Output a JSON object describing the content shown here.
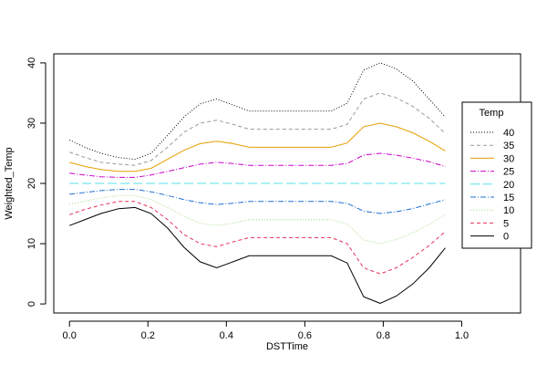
{
  "chart_data": {
    "type": "line",
    "title": "",
    "xlabel": "DSTTime",
    "ylabel": "Weighted_Temp",
    "xlim": [
      -0.04,
      1.15
    ],
    "ylim": [
      -1.5,
      41.5
    ],
    "x_ticks": [
      0.0,
      0.2,
      0.4,
      0.6,
      0.8,
      1.0
    ],
    "x_tick_labels": [
      "0.0",
      "0.2",
      "0.4",
      "0.6",
      "0.8",
      "1.0"
    ],
    "y_ticks": [
      0,
      10,
      20,
      30,
      40
    ],
    "y_tick_labels": [
      "0",
      "10",
      "20",
      "30",
      "40"
    ],
    "grid": false,
    "legend": {
      "title": "Temp",
      "position": "right"
    },
    "x": [
      0.0,
      0.04,
      0.08,
      0.125,
      0.167,
      0.208,
      0.25,
      0.292,
      0.333,
      0.375,
      0.417,
      0.458,
      0.5,
      0.542,
      0.583,
      0.625,
      0.667,
      0.708,
      0.75,
      0.792,
      0.833,
      0.875,
      0.917,
      0.958
    ],
    "series": [
      {
        "name": "40",
        "color": "#000000",
        "dash": "1,2",
        "values": [
          27.2,
          26.0,
          25.0,
          24.3,
          24.0,
          25.0,
          28.0,
          31.0,
          33.2,
          34.0,
          33.0,
          32.0,
          32.0,
          32.0,
          32.0,
          32.0,
          32.0,
          33.3,
          38.8,
          40.0,
          39.0,
          37.0,
          34.0,
          31.0
        ]
      },
      {
        "name": "35",
        "color": "#999999",
        "dash": "4,3",
        "values": [
          25.2,
          24.3,
          23.5,
          23.2,
          23.0,
          23.8,
          26.0,
          28.5,
          30.0,
          30.5,
          29.8,
          29.0,
          29.0,
          29.0,
          29.0,
          29.0,
          29.0,
          29.8,
          34.0,
          35.0,
          34.2,
          32.8,
          30.8,
          28.3
        ]
      },
      {
        "name": "30",
        "color": "#E69F00",
        "dash": "",
        "values": [
          23.5,
          22.8,
          22.3,
          22.0,
          22.0,
          22.5,
          24.0,
          25.5,
          26.6,
          27.0,
          26.6,
          26.0,
          26.0,
          26.0,
          26.0,
          26.0,
          26.0,
          26.7,
          29.4,
          30.0,
          29.4,
          28.4,
          27.0,
          25.4
        ]
      },
      {
        "name": "25",
        "color": "#CC00CC",
        "dash": "6,2,1,2",
        "values": [
          21.7,
          21.4,
          21.1,
          21.0,
          21.0,
          21.4,
          22.0,
          22.6,
          23.2,
          23.5,
          23.3,
          23.0,
          23.0,
          23.0,
          23.0,
          23.0,
          23.0,
          23.3,
          24.7,
          25.0,
          24.7,
          24.2,
          23.6,
          22.8
        ]
      },
      {
        "name": "20",
        "color": "#56E0EB",
        "dash": "10,4",
        "values": [
          20.0,
          20.0,
          20.0,
          20.0,
          20.0,
          20.0,
          20.0,
          20.0,
          20.0,
          20.0,
          20.0,
          20.0,
          20.0,
          20.0,
          20.0,
          20.0,
          20.0,
          20.0,
          20.0,
          20.0,
          20.0,
          20.0,
          20.0,
          20.0
        ]
      },
      {
        "name": "15",
        "color": "#1F6FD1",
        "dash": "6,2,1,2",
        "values": [
          18.2,
          18.5,
          18.8,
          19.0,
          19.0,
          18.6,
          18.0,
          17.3,
          16.8,
          16.5,
          16.7,
          17.0,
          17.0,
          17.0,
          17.0,
          17.0,
          17.0,
          16.7,
          15.4,
          15.0,
          15.3,
          15.8,
          16.6,
          17.3
        ]
      },
      {
        "name": "10",
        "color": "#A5D98A",
        "dash": "1,2",
        "values": [
          16.5,
          17.1,
          17.6,
          18.0,
          18.0,
          17.3,
          16.0,
          14.5,
          13.4,
          13.0,
          13.4,
          14.0,
          14.0,
          14.0,
          14.0,
          14.0,
          14.0,
          13.3,
          10.6,
          10.0,
          10.7,
          11.8,
          13.2,
          14.8
        ]
      },
      {
        "name": "5",
        "color": "#E8305A",
        "dash": "4,3",
        "values": [
          14.8,
          15.7,
          16.4,
          17.0,
          17.0,
          16.0,
          14.0,
          11.5,
          10.0,
          9.5,
          10.3,
          11.0,
          11.0,
          11.0,
          11.0,
          11.0,
          11.0,
          10.0,
          6.0,
          5.0,
          6.0,
          7.7,
          9.7,
          12.0
        ]
      },
      {
        "name": "0",
        "color": "#000000",
        "dash": "",
        "values": [
          13.0,
          14.0,
          15.0,
          15.8,
          16.0,
          15.0,
          12.6,
          9.4,
          7.0,
          6.0,
          7.0,
          8.0,
          8.0,
          8.0,
          8.0,
          8.0,
          8.0,
          6.8,
          1.2,
          0.1,
          1.3,
          3.3,
          6.0,
          9.3
        ]
      }
    ]
  }
}
